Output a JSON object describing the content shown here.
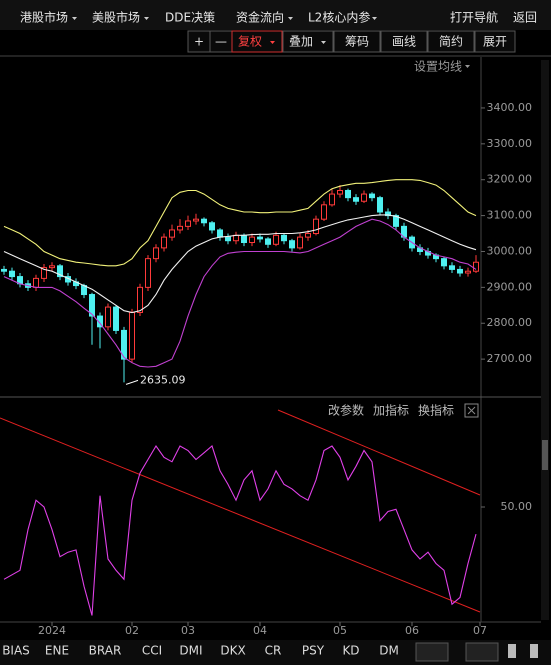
{
  "toolbar": {
    "menus": [
      "港股市场",
      "美股市场",
      "DDE决策",
      "资金流向",
      "L2核心内参"
    ],
    "nav": "打开导航",
    "back": "返回"
  },
  "buttons": [
    "+",
    "—",
    "复权",
    "叠加",
    "筹码",
    "画线",
    "简约",
    "展开"
  ],
  "ma_setting": "设置均线",
  "indicator_actions": [
    "改参数",
    "加指标",
    "换指标"
  ],
  "tabs": [
    "BIAS",
    "ENE",
    "BRAR",
    "CCI",
    "DMI",
    "DKX",
    "CR",
    "PSY",
    "KD",
    "DM"
  ],
  "chart_data": [
    {
      "type": "candlestick",
      "open": [
        2950,
        2945,
        2930,
        2910,
        2900,
        2925,
        2955,
        2960,
        2930,
        2915,
        2905,
        2880,
        2820,
        2790,
        2845,
        2780,
        2700,
        2830,
        2900,
        2980,
        3010,
        3040,
        3060,
        3070,
        3085,
        3090,
        3080,
        3060,
        3040,
        3030,
        3045,
        3025,
        3040,
        3035,
        3020,
        3045,
        3030,
        3010,
        3040,
        3050,
        3090,
        3130,
        3160,
        3170,
        3150,
        3140,
        3160,
        3150,
        3110,
        3100,
        3070,
        3040,
        3010,
        3000,
        2990,
        2980,
        2960,
        2950,
        2940,
        2945
      ],
      "high": [
        2960,
        2955,
        2940,
        2920,
        2935,
        2965,
        2970,
        2965,
        2940,
        2925,
        2910,
        2885,
        2830,
        2855,
        2850,
        2790,
        2840,
        2910,
        2990,
        3020,
        3050,
        3075,
        3090,
        3100,
        3105,
        3095,
        3085,
        3065,
        3050,
        3055,
        3050,
        3050,
        3050,
        3040,
        3055,
        3050,
        3035,
        3050,
        3060,
        3100,
        3140,
        3175,
        3185,
        3175,
        3160,
        3170,
        3165,
        3155,
        3120,
        3105,
        3080,
        3045,
        3020,
        3010,
        2995,
        2985,
        2970,
        2960,
        2955,
        2990
      ],
      "low": [
        2935,
        2920,
        2900,
        2890,
        2890,
        2915,
        2945,
        2920,
        2905,
        2895,
        2870,
        2740,
        2730,
        2780,
        2770,
        2635.09,
        2690,
        2820,
        2890,
        2970,
        3000,
        3030,
        3050,
        3060,
        3075,
        3070,
        3050,
        3030,
        3020,
        3020,
        3015,
        3015,
        3025,
        3010,
        3015,
        3020,
        3000,
        3005,
        3030,
        3045,
        3085,
        3125,
        3150,
        3140,
        3130,
        3135,
        3140,
        3100,
        3090,
        3060,
        3030,
        3000,
        2990,
        2980,
        2970,
        2950,
        2940,
        2930,
        2930,
        2940
      ],
      "close": [
        2945,
        2930,
        2910,
        2900,
        2925,
        2955,
        2960,
        2930,
        2915,
        2905,
        2880,
        2820,
        2790,
        2845,
        2780,
        2700,
        2830,
        2900,
        2980,
        3010,
        3040,
        3060,
        3070,
        3085,
        3090,
        3080,
        3060,
        3040,
        3030,
        3045,
        3025,
        3040,
        3035,
        3020,
        3045,
        3030,
        3010,
        3040,
        3050,
        3090,
        3130,
        3160,
        3170,
        3150,
        3140,
        3160,
        3150,
        3110,
        3100,
        3070,
        3040,
        3010,
        3000,
        2990,
        2980,
        2960,
        2950,
        2940,
        2945,
        2970
      ],
      "up_color": "#ff3a3a",
      "down_color": "#4ff0f0",
      "series": [
        {
          "color": "#f2f27a",
          "values": [
            3070,
            3060,
            3050,
            3035,
            3020,
            3000,
            2990,
            2980,
            2975,
            2970,
            2968,
            2965,
            2962,
            2960,
            2960,
            2965,
            2980,
            3010,
            3030,
            3070,
            3110,
            3150,
            3165,
            3170,
            3170,
            3160,
            3145,
            3130,
            3120,
            3115,
            3110,
            3110,
            3108,
            3108,
            3110,
            3110,
            3110,
            3115,
            3120,
            3140,
            3160,
            3175,
            3182,
            3186,
            3190,
            3190,
            3192,
            3195,
            3198,
            3200,
            3200,
            3200,
            3198,
            3192,
            3185,
            3170,
            3150,
            3130,
            3110,
            3100
          ]
        },
        {
          "color": "#f0f0f0",
          "values": [
            3000,
            2990,
            2980,
            2970,
            2960,
            2950,
            2945,
            2935,
            2925,
            2915,
            2905,
            2895,
            2880,
            2865,
            2850,
            2835,
            2830,
            2835,
            2850,
            2880,
            2920,
            2950,
            2975,
            3000,
            3015,
            3025,
            3035,
            3040,
            3042,
            3045,
            3045,
            3047,
            3048,
            3048,
            3050,
            3050,
            3050,
            3052,
            3055,
            3060,
            3068,
            3075,
            3082,
            3088,
            3092,
            3096,
            3100,
            3102,
            3102,
            3098,
            3090,
            3080,
            3070,
            3060,
            3050,
            3040,
            3030,
            3020,
            3012,
            3005
          ]
        },
        {
          "color": "#c040d0",
          "values": [
            2930,
            2920,
            2910,
            2905,
            2900,
            2900,
            2900,
            2890,
            2875,
            2860,
            2842,
            2825,
            2800,
            2770,
            2740,
            2705,
            2690,
            2680,
            2678,
            2680,
            2690,
            2700,
            2750,
            2820,
            2880,
            2930,
            2960,
            2985,
            2995,
            2998,
            3000,
            3000,
            3000,
            3000,
            3000,
            3000,
            2998,
            2996,
            3000,
            3010,
            3020,
            3030,
            3040,
            3055,
            3070,
            3080,
            3090,
            3085,
            3075,
            3060,
            3040,
            3025,
            3010,
            3000,
            2990,
            2985,
            2980,
            2970,
            2965,
            2950
          ]
        }
      ],
      "annotation": {
        "text": "2635.09"
      },
      "ylim": [
        2600,
        3542
      ],
      "yticks": [
        {
          "value": 2700,
          "label": "2700.00"
        },
        {
          "value": 2800,
          "label": "2800.00"
        },
        {
          "value": 2900,
          "label": "2900.00"
        },
        {
          "value": 3000,
          "label": "3000.00"
        },
        {
          "value": 3100,
          "label": "3100.00"
        },
        {
          "value": 3200,
          "label": "3200.00"
        },
        {
          "value": 3300,
          "label": "3300.00"
        },
        {
          "value": 3400,
          "label": "3400.00"
        }
      ],
      "xlim": [
        -0.5,
        59.5
      ],
      "xticks": [
        {
          "value": 6,
          "label": "2024"
        },
        {
          "value": 16,
          "label": "02"
        },
        {
          "value": 23,
          "label": "03"
        },
        {
          "value": 32,
          "label": "04"
        },
        {
          "value": 42,
          "label": "05"
        },
        {
          "value": 51,
          "label": "06"
        },
        {
          "value": 59.5,
          "label": "07"
        }
      ]
    },
    {
      "type": "line",
      "series": [
        {
          "color": "#e040e8",
          "values": [
            18,
            20,
            22,
            40,
            53,
            50,
            40,
            28,
            30,
            31,
            15,
            2,
            55,
            27,
            22,
            18,
            53,
            65,
            71,
            77,
            72,
            70,
            77,
            75,
            71,
            74,
            77,
            66,
            60,
            53,
            62,
            66,
            53,
            58,
            66,
            60,
            58,
            55,
            53,
            62,
            75,
            77,
            72,
            62,
            68,
            75,
            70,
            44,
            48,
            49,
            40,
            31,
            27,
            30,
            25,
            22,
            7,
            10,
            25,
            38
          ]
        }
      ],
      "ylim": [
        0,
        100
      ],
      "yticks": [
        {
          "value": 50,
          "label": "50.00"
        }
      ]
    }
  ]
}
